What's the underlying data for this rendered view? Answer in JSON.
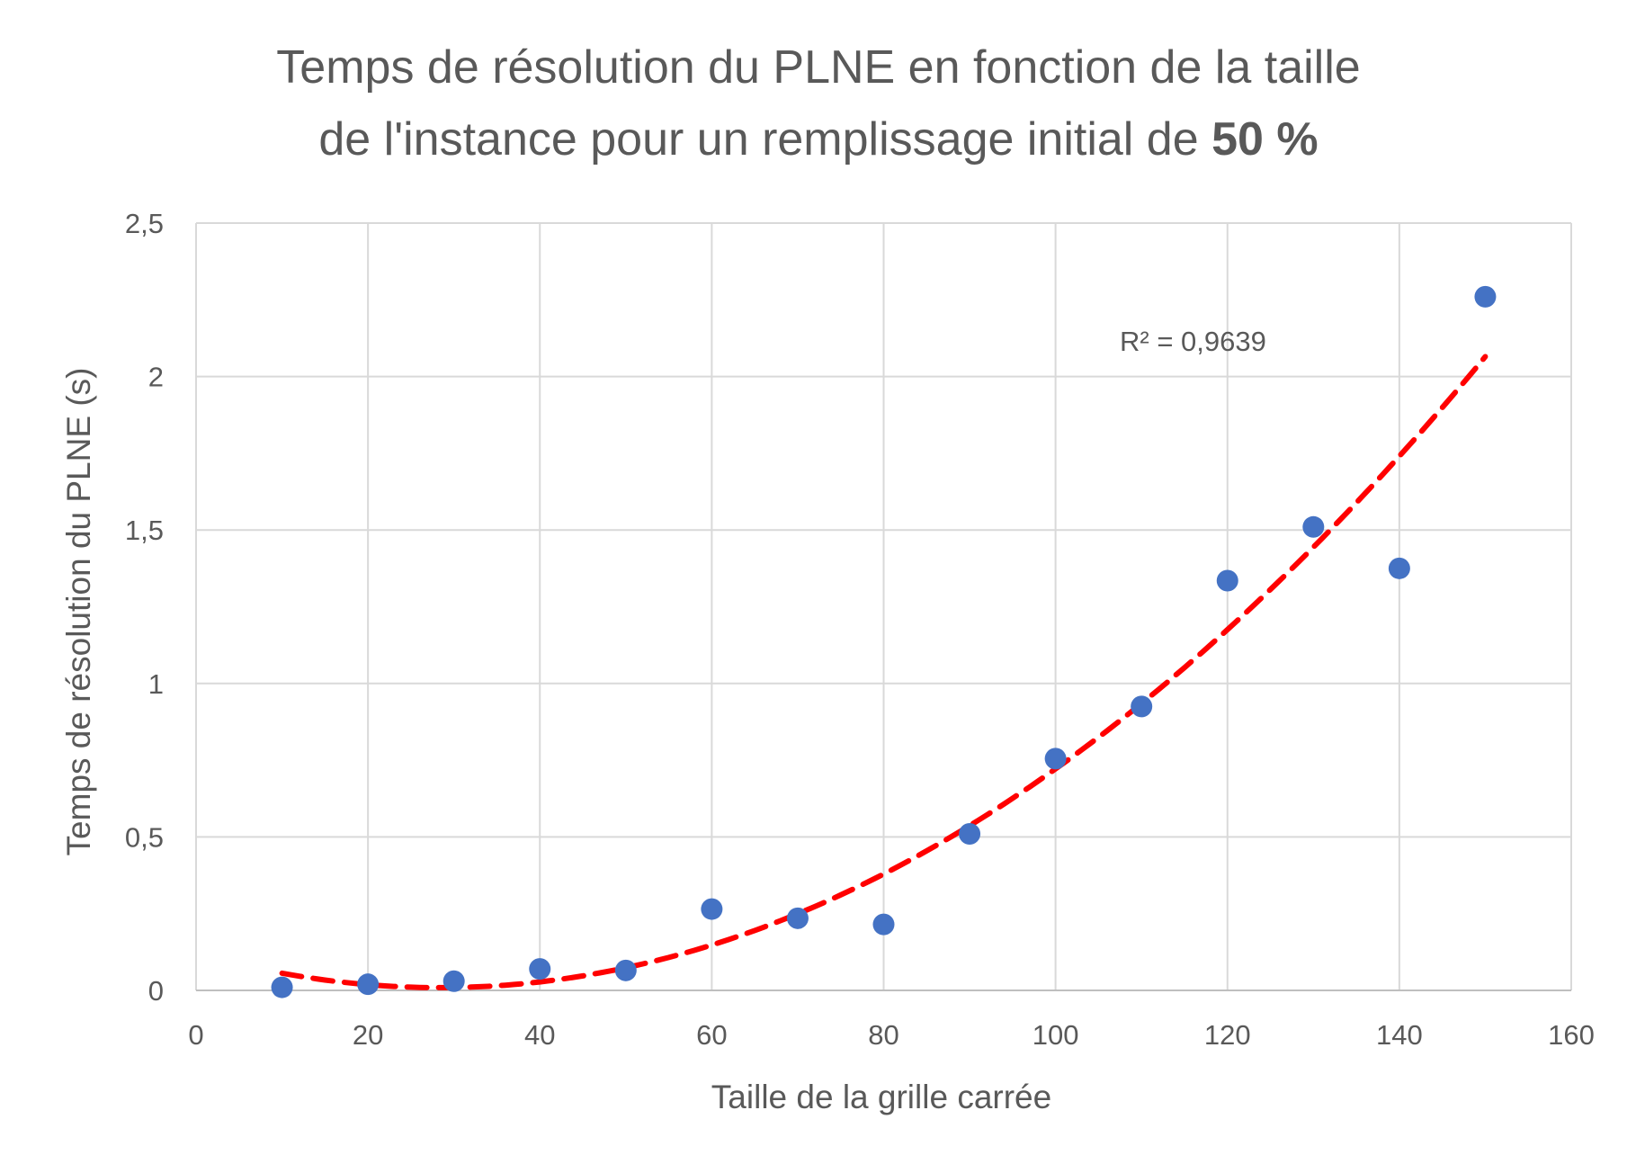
{
  "chart_data": {
    "type": "scatter",
    "title_line1": "Temps de résolution du PLNE en fonction de la taille",
    "title_line2_prefix": "de l'instance pour un remplissage initial de ",
    "title_line2_bold": "50 %",
    "xlabel": "Taille de la grille carrée",
    "ylabel": "Temps de résolution du PLNE (s)",
    "xlim": [
      0,
      160
    ],
    "ylim": [
      0,
      2.5
    ],
    "x_ticks": [
      0,
      20,
      40,
      60,
      80,
      100,
      120,
      140,
      160
    ],
    "x_tick_labels": [
      "0",
      "20",
      "40",
      "60",
      "80",
      "100",
      "120",
      "140",
      "160"
    ],
    "y_ticks": [
      0,
      0.5,
      1,
      1.5,
      2,
      2.5
    ],
    "y_tick_labels": [
      "0",
      "0,5",
      "1",
      "1,5",
      "2",
      "2,5"
    ],
    "grid": true,
    "legend": "none",
    "annotation": "R² = 0,9639",
    "marker_color": "#4472C4",
    "trend_color": "#FF0000",
    "series": [
      {
        "x": [
          10,
          20,
          30,
          40,
          50,
          60,
          70,
          80,
          90,
          100,
          110,
          120,
          130,
          140,
          150
        ],
        "y": [
          0.01,
          0.02,
          0.03,
          0.07,
          0.065,
          0.265,
          0.235,
          0.215,
          0.51,
          0.755,
          0.925,
          1.335,
          1.51,
          1.375,
          2.26
        ]
      }
    ],
    "trendline": {
      "type": "polynomial",
      "order": 2,
      "x_range": [
        10,
        150
      ]
    }
  }
}
